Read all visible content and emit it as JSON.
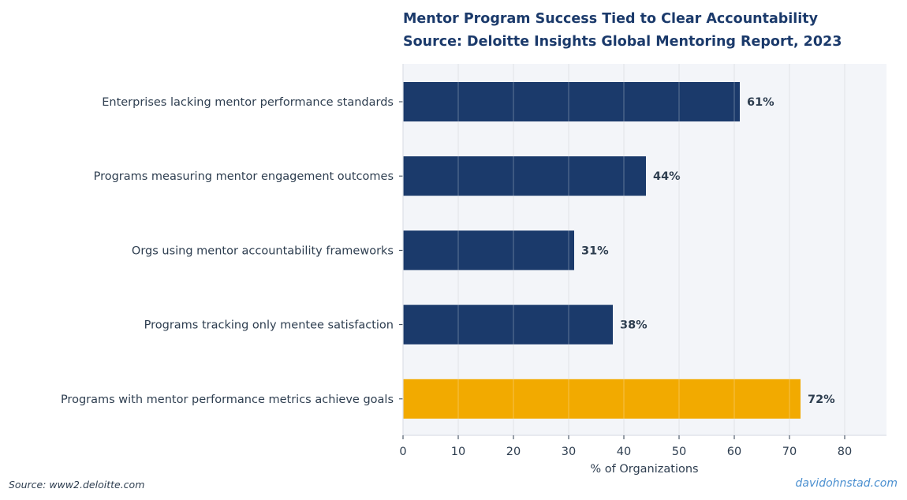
{
  "header": {
    "title": "Mentor Program Success Tied to Clear Accountability",
    "subtitle": "Source: Deloitte Insights Global Mentoring Report, 2023"
  },
  "footer": {
    "source": "Source: www2.deloitte.com",
    "credit": "davidohnstad.com"
  },
  "colors": {
    "bar_default": "#1b3a6b",
    "bar_highlight": "#f2aa00",
    "plot_background": "#f3f5f9",
    "grid": "#dcdfe6",
    "text": "#2e3e50",
    "title": "#1b3a6b",
    "credit": "#4a8fd0"
  },
  "chart_data": {
    "type": "bar",
    "orientation": "horizontal",
    "categories": [
      "Enterprises lacking mentor performance standards",
      "Programs measuring mentor engagement outcomes",
      "Orgs using mentor accountability frameworks",
      "Programs tracking only mentee satisfaction",
      "Programs with mentor performance metrics achieve goals"
    ],
    "values": [
      61,
      44,
      31,
      38,
      72
    ],
    "value_labels": [
      "61%",
      "44%",
      "31%",
      "38%",
      "72%"
    ],
    "highlight_index": 4,
    "title": "Mentor Program Success Tied to Clear Accountability",
    "subtitle": "Source: Deloitte Insights Global Mentoring Report, 2023",
    "xlabel": "% of Organizations",
    "ylabel": "",
    "xlim": [
      0,
      87.5
    ],
    "xticks": [
      0,
      10,
      20,
      30,
      40,
      50,
      60,
      70,
      80
    ],
    "xtick_labels": [
      "0",
      "10",
      "20",
      "30",
      "40",
      "50",
      "60",
      "70",
      "80"
    ],
    "grid": "vertical",
    "legend": "none"
  }
}
